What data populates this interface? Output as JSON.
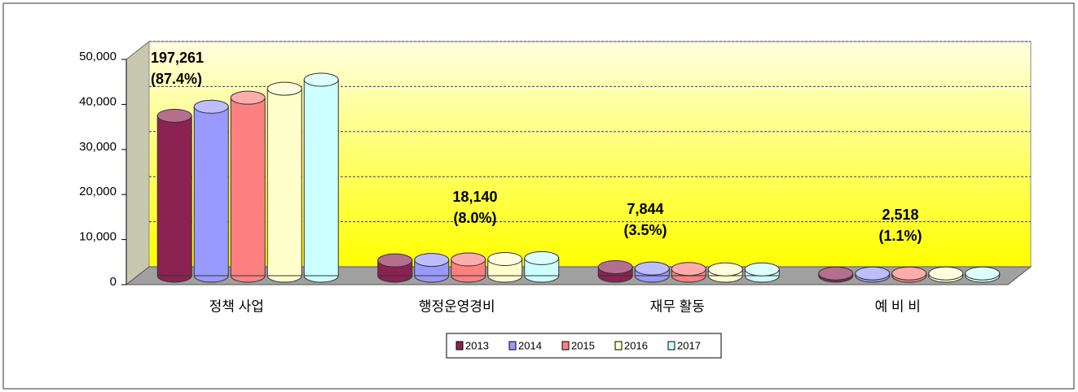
{
  "chart_data": {
    "type": "bar3d",
    "categories": [
      "정책 사업",
      "행정운영경비",
      "재무 활동",
      "예 비 비"
    ],
    "series": [
      {
        "name": "2013",
        "color": "#8b2252",
        "values": [
          35500,
          3400,
          1900,
          500
        ]
      },
      {
        "name": "2014",
        "color": "#9999ff",
        "values": [
          37500,
          3500,
          1600,
          500
        ]
      },
      {
        "name": "2015",
        "color": "#ff8080",
        "values": [
          39500,
          3600,
          1500,
          500
        ]
      },
      {
        "name": "2016",
        "color": "#ffffcc",
        "values": [
          41500,
          3700,
          1400,
          500
        ]
      },
      {
        "name": "2017",
        "color": "#ccffff",
        "values": [
          43500,
          3900,
          1400,
          500
        ]
      }
    ],
    "annotations": [
      {
        "total": "197,261",
        "share": "(87.4%)"
      },
      {
        "total": "18,140",
        "share": "(8.0%)"
      },
      {
        "total": "7,844",
        "share": "(3.5%)"
      },
      {
        "total": "2,518",
        "share": "(1.1%)"
      }
    ],
    "ylim": [
      0,
      50000
    ],
    "yticks": [
      0,
      {
        "value": 10000,
        "label": "10,000"
      },
      {
        "value": 20000,
        "label": "20,000"
      },
      {
        "value": 30000,
        "label": "30,000"
      },
      {
        "value": 40000,
        "label": "40,000"
      },
      {
        "value": 50000,
        "label": "50,000"
      }
    ],
    "grid": true,
    "legend": "bottom"
  }
}
